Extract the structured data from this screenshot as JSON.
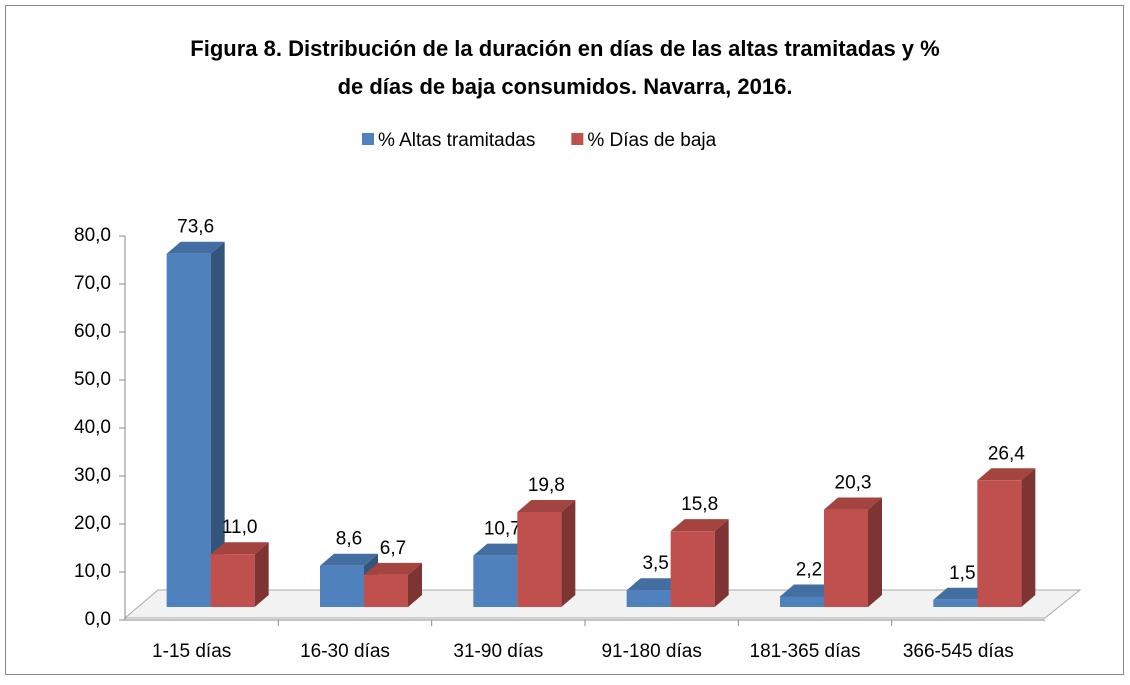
{
  "chart_data": {
    "type": "bar3d",
    "title": [
      "Figura 8. Distribución de la duración en días de las altas tramitadas y %",
      "de días de baja consumidos. Navarra, 2016."
    ],
    "categories": [
      "1-15 días",
      "16-30 días",
      "31-90 días",
      "91-180 días",
      "181-365 días",
      "366-545 días"
    ],
    "series": [
      {
        "name": "% Altas tramitadas",
        "color": "#4f81bd",
        "values": [
          73.6,
          8.6,
          10.7,
          3.5,
          2.2,
          1.5
        ],
        "value_labels": [
          "73,6",
          "8,6",
          "10,7",
          "3,5",
          "2,2",
          "1,5"
        ]
      },
      {
        "name": "% Días de baja",
        "color": "#c0504d",
        "values": [
          11.0,
          6.7,
          19.8,
          15.8,
          20.3,
          26.4
        ],
        "value_labels": [
          "11,0",
          "6,7",
          "19,8",
          "15,8",
          "20,3",
          "26,4"
        ]
      }
    ],
    "ylim": [
      0,
      80
    ],
    "yticks": [
      {
        "value": 0,
        "label": "0,0"
      },
      {
        "value": 10,
        "label": "10,0"
      },
      {
        "value": 20,
        "label": "20,0"
      },
      {
        "value": 30,
        "label": "30,0"
      },
      {
        "value": 40,
        "label": "40,0"
      },
      {
        "value": 50,
        "label": "50,0"
      },
      {
        "value": 60,
        "label": "60,0"
      },
      {
        "value": 70,
        "label": "70,0"
      },
      {
        "value": 80,
        "label": "80,0"
      }
    ],
    "legend": "top"
  }
}
